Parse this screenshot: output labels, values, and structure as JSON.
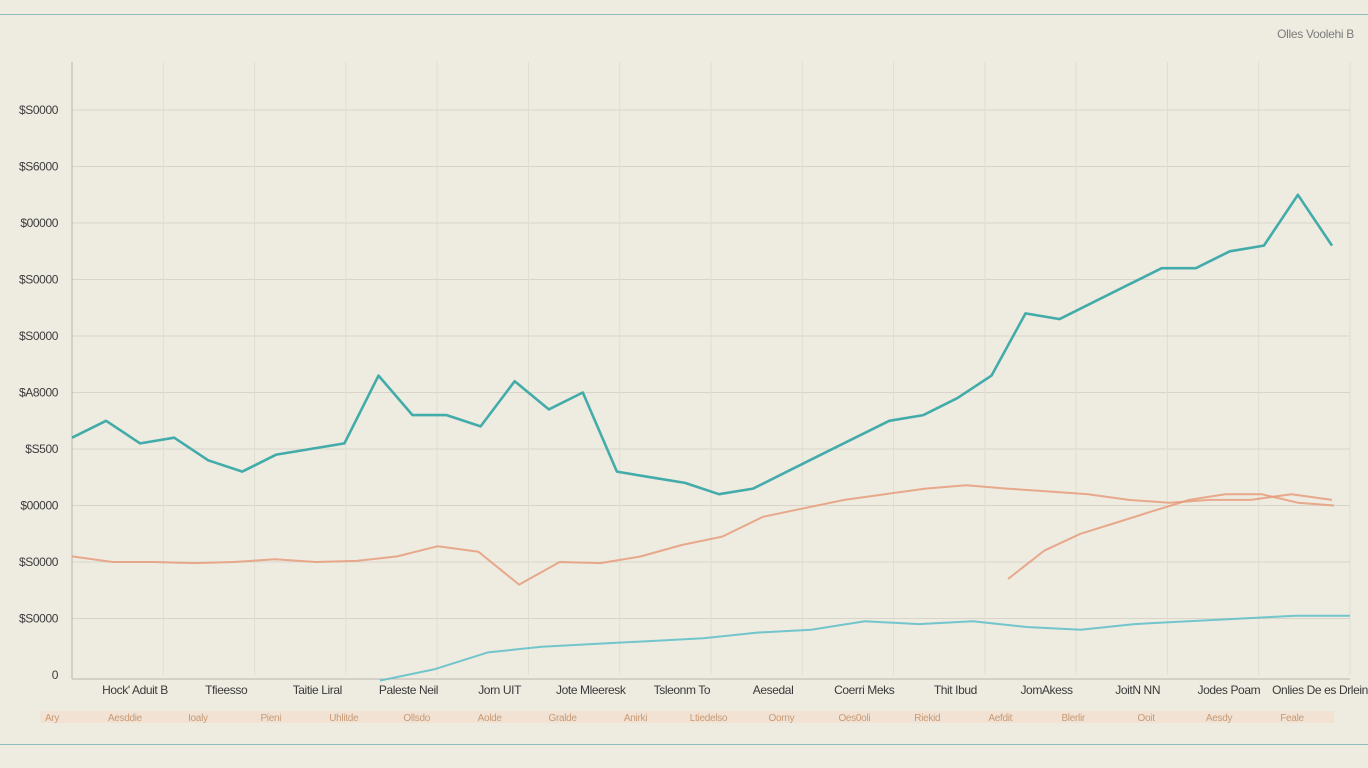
{
  "chart_data": {
    "type": "line",
    "legend": "Olles Voolehi B",
    "legend_placement": "top-right",
    "grid": true,
    "ylim": [
      0,
      10
    ],
    "yticks": [
      {
        "label": "0",
        "value": 0
      },
      {
        "label": "$S0000",
        "value": 1
      },
      {
        "label": "$S0000",
        "value": 2
      },
      {
        "label": "$00000",
        "value": 3
      },
      {
        "label": "$S500",
        "value": 4
      },
      {
        "label": "$A8000",
        "value": 5
      },
      {
        "label": "$S0000",
        "value": 6
      },
      {
        "label": "$S0000",
        "value": 7
      },
      {
        "label": "$00000",
        "value": 8
      },
      {
        "label": "$S6000",
        "value": 9
      },
      {
        "label": "$S0000",
        "value": 10
      }
    ],
    "xticks": [
      "Hock' Aduit B",
      "Tfieesso",
      "Taitie Liral",
      "Paleste Neil",
      "Jorn UIT",
      "Jote Mleeresk",
      "Tsleonm To",
      "Aesedal",
      "Coerri Meks",
      "Thit Ibud",
      "JomAkess",
      "JoitN NN",
      "Jodes Poam",
      "Onlies De es Drlein"
    ],
    "xsub_labels": [
      "Ary",
      "Aesddie",
      "Ioaly",
      "Pieni",
      "Uhlitde",
      "Ollsdo",
      "Aolde",
      "Gralde",
      "Anirki",
      "Ltiedelso",
      "Oorny",
      "Oes0oli",
      "Riekid",
      "Aefdit",
      "Blerlir",
      "Ooit",
      "Aesdy",
      "Feale"
    ],
    "series": [
      {
        "color": "#39a9a6",
        "values": [
          4.2,
          4.5,
          4.1,
          4.2,
          3.8,
          3.6,
          3.9,
          4.0,
          4.1,
          5.3,
          4.6,
          4.6,
          4.4,
          5.2,
          4.7,
          5.0,
          3.6,
          3.5,
          3.4,
          3.2,
          3.3,
          3.6,
          3.9,
          4.2,
          4.5,
          4.6,
          4.9,
          5.3,
          6.4,
          6.3,
          6.6,
          6.9,
          7.2,
          7.2,
          7.5,
          7.6,
          8.5,
          7.6
        ]
      },
      {
        "color": "#e69c7b",
        "values": [
          2.1,
          2.0,
          2.0,
          1.98,
          2.0,
          2.05,
          2.0,
          2.02,
          2.1,
          2.28,
          2.18,
          1.6,
          2.0,
          1.98,
          2.1,
          2.3,
          2.45,
          2.8,
          2.95,
          3.1,
          3.2,
          3.3,
          3.36,
          3.3,
          3.25,
          3.2,
          3.1,
          3.05,
          3.1,
          3.1,
          3.2,
          3.1
        ]
      },
      {
        "color": "#e69c7b",
        "values": [
          1.7,
          2.2,
          2.5,
          2.7,
          2.9,
          3.1,
          3.2,
          3.2,
          3.05,
          3.0
        ]
      },
      {
        "color": "#5cc0c7",
        "values": [
          -0.1,
          0.1,
          0.4,
          0.5,
          0.55,
          0.6,
          0.65,
          0.75,
          0.8,
          0.95,
          0.9,
          0.95,
          0.85,
          0.8,
          0.9,
          0.95,
          1.0,
          1.05,
          1.05
        ]
      }
    ]
  }
}
